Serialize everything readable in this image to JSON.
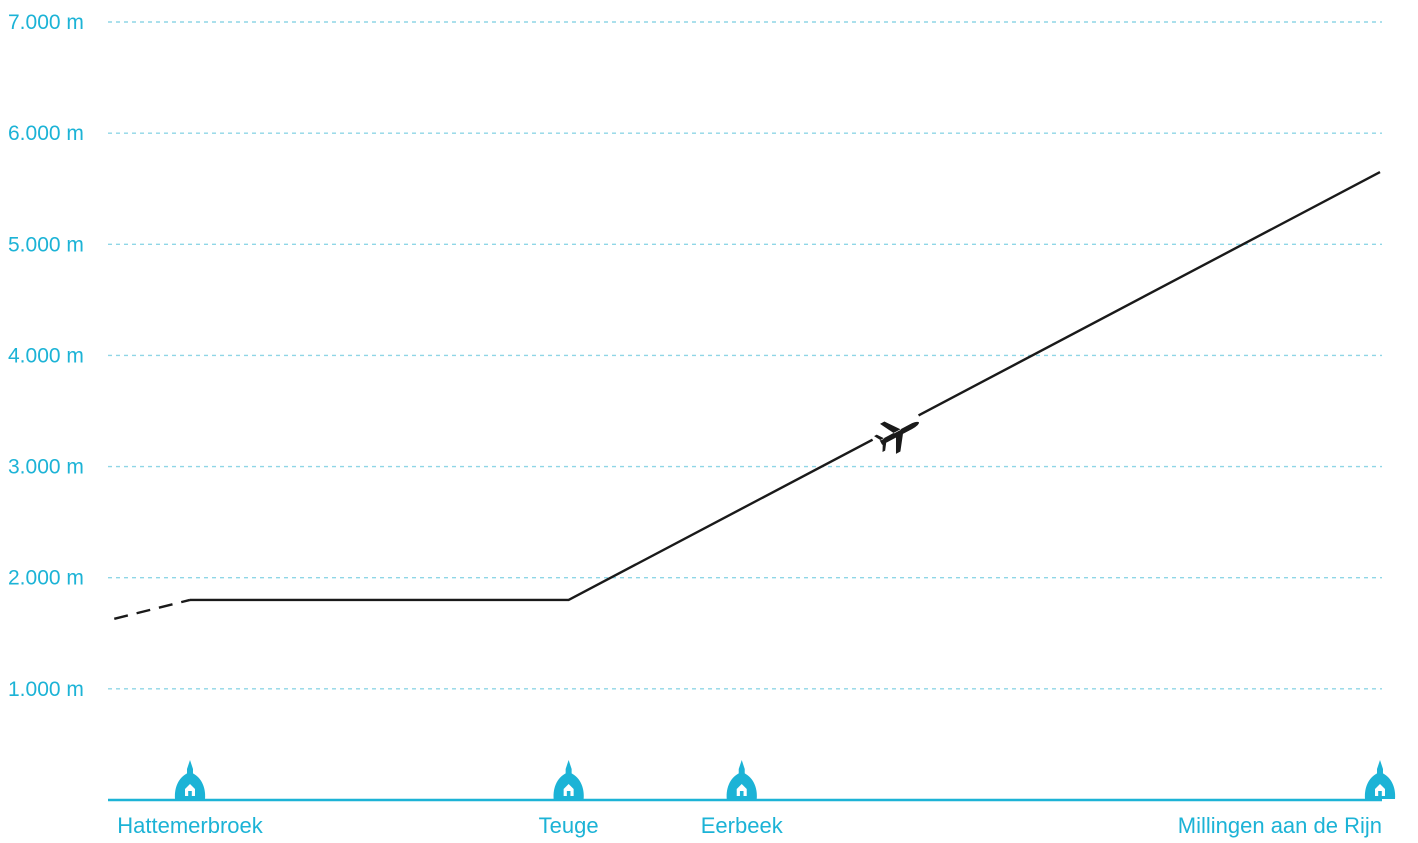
{
  "chart_data": {
    "type": "line",
    "title": "",
    "xlabel": "",
    "ylabel": "",
    "y_unit": "m",
    "ylim": [
      0,
      7000
    ],
    "yticks": [
      {
        "value": 1000,
        "label": "1.000 m"
      },
      {
        "value": 2000,
        "label": "2.000 m"
      },
      {
        "value": 3000,
        "label": "3.000 m"
      },
      {
        "value": 4000,
        "label": "4.000 m"
      },
      {
        "value": 5000,
        "label": "5.000 m"
      },
      {
        "value": 6000,
        "label": "6.000 m"
      },
      {
        "value": 7000,
        "label": "7.000 m"
      }
    ],
    "grid": true,
    "places": [
      {
        "name": "Hattemerbroek",
        "x": 0
      },
      {
        "name": "Teuge",
        "x": 35
      },
      {
        "name": "Eerbeek",
        "x": 51
      },
      {
        "name": "Millingen aan de Rijn",
        "x": 110
      }
    ],
    "series": [
      {
        "dashed_points": [
          {
            "x": -7,
            "y": 1630
          },
          {
            "x": 0,
            "y": 1800
          }
        ],
        "points": [
          {
            "x": 0,
            "y": 1800
          },
          {
            "x": 35,
            "y": 1800
          },
          {
            "x": 110,
            "y": 5650
          }
        ]
      }
    ],
    "aircraft_marker": {
      "icon": "airplane-icon",
      "x": 65.5,
      "y": 3300
    },
    "colors": {
      "accent": "#1cb3d6",
      "grid": "#8fd6e6",
      "line": "#1a1a1a",
      "background": "#ffffff"
    }
  }
}
